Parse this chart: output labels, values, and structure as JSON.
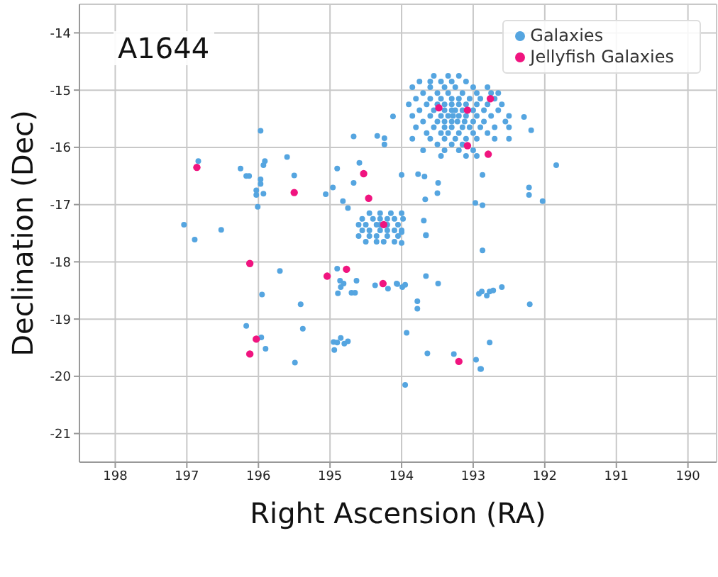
{
  "chart_data": {
    "type": "scatter",
    "title": "A1644",
    "xlabel": "Right Ascension (RA)",
    "ylabel": "Declination (Dec)",
    "xlim": [
      198.5,
      189.6
    ],
    "ylim": [
      -21.5,
      -13.5
    ],
    "xticks": [
      198,
      197,
      196,
      195,
      194,
      193,
      192,
      191,
      190
    ],
    "yticks": [
      -21,
      -20,
      -19,
      -18,
      -17,
      -16,
      -15,
      -14
    ],
    "grid": true,
    "legend": "top right",
    "marker": "circle",
    "series": [
      {
        "name": "Galaxies",
        "color": "#55a5e0",
        "x": [
          194.12,
          195.97,
          194.67,
          194.34,
          194.24,
          194.24,
          196.84,
          196.25,
          195.91,
          195.93,
          195.6,
          196.17,
          196.13,
          195.5,
          194.9,
          194.59,
          195.97,
          195.97,
          196.03,
          196.03,
          195.93,
          194.67,
          194.96,
          195.06,
          194.82,
          194.75,
          196.01,
          194.0,
          197.04,
          196.52,
          196.89,
          192.29,
          192.19,
          191.84,
          193.77,
          193.68,
          193.49,
          193.5,
          192.87,
          193.67,
          192.97,
          192.87,
          192.22,
          192.22,
          192.03,
          193.69,
          193.66,
          192.87,
          195.7,
          194.9,
          194.86,
          194.81,
          194.85,
          194.63,
          194.89,
          194.7,
          194.65,
          194.37,
          194.19,
          194.07,
          193.99,
          195.95,
          195.41,
          196.17,
          195.96,
          195.38,
          195.9,
          195.49,
          194.95,
          194.9,
          194.85,
          194.8,
          194.75,
          194.94,
          194.0,
          194.0,
          193.66,
          194.06,
          193.95,
          193.66,
          193.49,
          193.78,
          193.78,
          192.92,
          192.88,
          192.81,
          192.77,
          192.72,
          192.6,
          192.21,
          193.93,
          192.77,
          193.64,
          193.27,
          192.96,
          192.9,
          192.89,
          193.95,
          193.55,
          193.35,
          193.2,
          193.75,
          193.6,
          193.45,
          193.3,
          193.1,
          193.85,
          193.6,
          193.4,
          193.25,
          193.0,
          192.8,
          193.7,
          193.5,
          193.35,
          193.15,
          192.95,
          192.75,
          192.65,
          193.8,
          193.6,
          193.45,
          193.3,
          193.2,
          193.05,
          192.9,
          192.7,
          193.9,
          193.65,
          193.5,
          193.4,
          193.3,
          193.2,
          193.1,
          192.95,
          192.8,
          192.6,
          193.75,
          193.55,
          193.4,
          193.3,
          193.25,
          193.15,
          193.0,
          192.85,
          192.65,
          193.85,
          193.6,
          193.45,
          193.35,
          193.28,
          193.2,
          193.1,
          192.95,
          192.75,
          192.5,
          193.7,
          193.5,
          193.4,
          193.3,
          193.22,
          193.12,
          193.0,
          192.85,
          192.55,
          193.8,
          193.55,
          193.4,
          193.3,
          193.15,
          193.05,
          192.9,
          192.7,
          192.5,
          193.65,
          193.45,
          193.35,
          193.2,
          193.0,
          192.8,
          193.85,
          193.6,
          193.4,
          193.25,
          193.1,
          192.95,
          192.7,
          192.5,
          193.5,
          193.3,
          193.15,
          193.7,
          193.4,
          193.2,
          193.0,
          193.45,
          193.1,
          192.95,
          194.45,
          194.3,
          194.15,
          194.0,
          194.55,
          194.4,
          194.3,
          194.2,
          194.1,
          193.98,
          194.6,
          194.5,
          194.35,
          194.3,
          194.2,
          194.05,
          194.55,
          194.45,
          194.3,
          194.2,
          194.1,
          194.0,
          194.6,
          194.45,
          194.35,
          194.2,
          194.05,
          194.5,
          194.35,
          194.25,
          194.1
        ],
        "values": [
          -15.46,
          -15.71,
          -15.81,
          -15.8,
          -15.84,
          -15.95,
          -16.24,
          -16.37,
          -16.24,
          -16.31,
          -16.17,
          -16.5,
          -16.5,
          -16.49,
          -16.37,
          -16.27,
          -16.56,
          -16.64,
          -16.75,
          -16.83,
          -16.81,
          -16.62,
          -16.7,
          -16.82,
          -16.94,
          -17.06,
          -17.04,
          -16.48,
          -17.35,
          -17.44,
          -17.61,
          -15.47,
          -15.7,
          -16.31,
          -16.47,
          -16.51,
          -16.62,
          -16.8,
          -16.48,
          -16.91,
          -16.97,
          -17.01,
          -16.7,
          -16.83,
          -16.94,
          -17.28,
          -17.53,
          -17.8,
          -18.16,
          -18.12,
          -18.33,
          -18.38,
          -18.44,
          -18.33,
          -18.55,
          -18.54,
          -18.54,
          -18.41,
          -18.47,
          -18.38,
          -18.44,
          -18.57,
          -18.74,
          -19.12,
          -19.32,
          -19.17,
          -19.52,
          -19.76,
          -19.4,
          -19.41,
          -19.33,
          -19.43,
          -19.39,
          -19.54,
          -17.48,
          -17.67,
          -17.54,
          -18.39,
          -18.4,
          -18.25,
          -18.38,
          -18.69,
          -18.82,
          -18.56,
          -18.52,
          -18.59,
          -18.52,
          -18.5,
          -18.44,
          -18.74,
          -19.24,
          -19.41,
          -19.6,
          -19.61,
          -19.71,
          -19.87,
          -19.87,
          -20.15,
          -14.75,
          -14.75,
          -14.75,
          -14.85,
          -14.85,
          -14.85,
          -14.85,
          -14.85,
          -14.95,
          -14.95,
          -14.95,
          -14.95,
          -14.95,
          -14.95,
          -15.05,
          -15.05,
          -15.05,
          -15.05,
          -15.05,
          -15.05,
          -15.05,
          -15.15,
          -15.15,
          -15.15,
          -15.15,
          -15.15,
          -15.15,
          -15.15,
          -15.15,
          -15.25,
          -15.25,
          -15.25,
          -15.25,
          -15.25,
          -15.25,
          -15.25,
          -15.25,
          -15.25,
          -15.25,
          -15.35,
          -15.35,
          -15.35,
          -15.35,
          -15.35,
          -15.35,
          -15.35,
          -15.35,
          -15.35,
          -15.45,
          -15.45,
          -15.45,
          -15.45,
          -15.45,
          -15.45,
          -15.45,
          -15.45,
          -15.45,
          -15.45,
          -15.55,
          -15.55,
          -15.55,
          -15.55,
          -15.55,
          -15.55,
          -15.55,
          -15.55,
          -15.55,
          -15.65,
          -15.65,
          -15.65,
          -15.65,
          -15.65,
          -15.65,
          -15.65,
          -15.65,
          -15.65,
          -15.75,
          -15.75,
          -15.75,
          -15.75,
          -15.75,
          -15.75,
          -15.85,
          -15.85,
          -15.85,
          -15.85,
          -15.85,
          -15.85,
          -15.85,
          -15.85,
          -15.95,
          -15.95,
          -15.95,
          -16.05,
          -16.05,
          -16.05,
          -16.05,
          -16.15,
          -16.15,
          -16.15,
          -17.15,
          -17.15,
          -17.15,
          -17.15,
          -17.25,
          -17.25,
          -17.25,
          -17.25,
          -17.25,
          -17.25,
          -17.35,
          -17.35,
          -17.35,
          -17.35,
          -17.35,
          -17.35,
          -17.45,
          -17.45,
          -17.45,
          -17.45,
          -17.45,
          -17.45,
          -17.55,
          -17.55,
          -17.55,
          -17.55,
          -17.55,
          -17.65,
          -17.65,
          -17.65,
          -17.65
        ]
      },
      {
        "name": "Jellyfish Galaxies",
        "color": "#f0147f",
        "x": [
          196.86,
          194.53,
          195.5,
          194.46,
          194.25,
          193.48,
          193.08,
          192.76,
          193.08,
          192.79,
          196.12,
          195.04,
          194.77,
          194.26,
          196.03,
          196.12,
          193.2
        ],
        "values": [
          -16.35,
          -16.46,
          -16.79,
          -16.89,
          -17.35,
          -15.31,
          -15.35,
          -15.15,
          -15.97,
          -16.12,
          -18.03,
          -18.25,
          -18.13,
          -18.38,
          -19.35,
          -19.61,
          -19.74
        ]
      }
    ]
  }
}
